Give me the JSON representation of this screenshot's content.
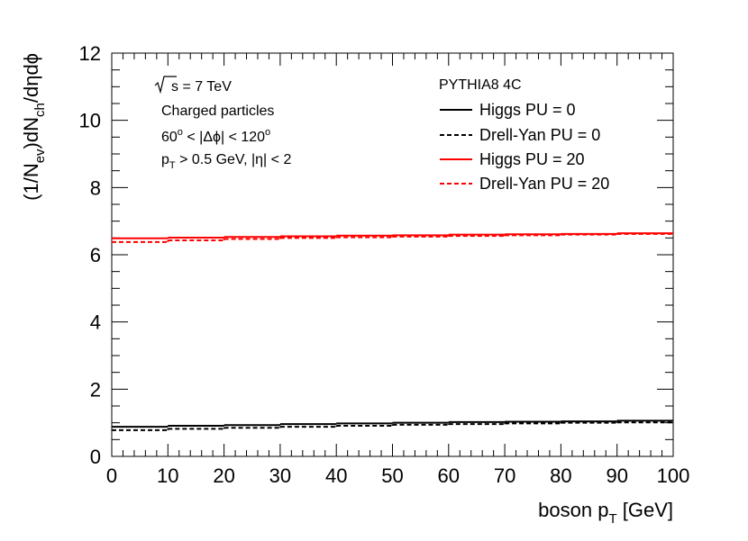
{
  "chart_data": {
    "type": "line",
    "xlabel": {
      "main": "boson p",
      "sub": "T",
      "unit": " [GeV]"
    },
    "ylabel": {
      "p1": "(1/N",
      "s1": "ev",
      "p2": ")dN",
      "s2": "ch",
      "p3": "/dηdϕ"
    },
    "xlim": [
      0,
      100
    ],
    "ylim": [
      0,
      12
    ],
    "x_ticks": [
      0,
      10,
      20,
      30,
      40,
      50,
      60,
      70,
      80,
      90,
      100
    ],
    "y_ticks": [
      0,
      2,
      4,
      6,
      8,
      10,
      12
    ],
    "bin_edges": [
      0,
      10,
      20,
      30,
      40,
      50,
      60,
      70,
      80,
      90,
      100
    ],
    "series": [
      {
        "name": "Higgs PU = 0",
        "color": "#000000",
        "dashed": false,
        "values": [
          0.88,
          0.91,
          0.93,
          0.96,
          0.98,
          1.0,
          1.02,
          1.03,
          1.04,
          1.06
        ]
      },
      {
        "name": "Drell-Yan PU = 0",
        "color": "#000000",
        "dashed": true,
        "values": [
          0.78,
          0.82,
          0.85,
          0.88,
          0.91,
          0.94,
          0.96,
          0.98,
          1.0,
          1.01
        ]
      },
      {
        "name": "Higgs PU = 20",
        "color": "#ff0000",
        "dashed": false,
        "values": [
          6.49,
          6.51,
          6.53,
          6.55,
          6.57,
          6.58,
          6.6,
          6.61,
          6.62,
          6.64
        ]
      },
      {
        "name": "Drell-Yan PU = 20",
        "color": "#ff0000",
        "dashed": true,
        "values": [
          6.38,
          6.43,
          6.47,
          6.5,
          6.52,
          6.54,
          6.56,
          6.58,
          6.6,
          6.62
        ]
      }
    ],
    "annotations": {
      "sqrt_s": "s = 7 TeV",
      "particles": "Charged particles",
      "dphi": {
        "a": "60",
        "b": " < |Δϕ| < 120",
        "deg": "o"
      },
      "pt_cut": {
        "a": "p",
        "sub": "T",
        "b": " > 0.5 GeV, |η| < 2"
      }
    },
    "legend_title": "PYTHIA8 4C",
    "legend_placement": "top-right"
  }
}
